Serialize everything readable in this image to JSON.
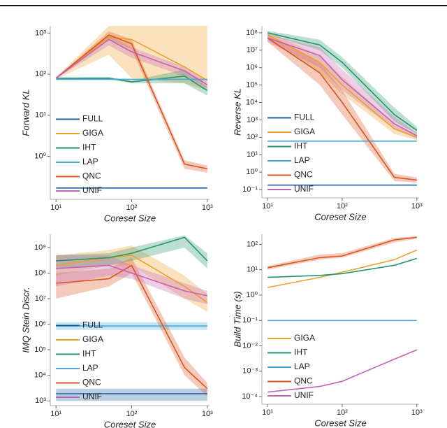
{
  "chart_data": [
    {
      "type": "line",
      "x_scale": "log",
      "y_scale": "log",
      "legend": "lower left",
      "x_label": "Coreset Size",
      "y_label": "Forward KL",
      "x": [
        10,
        50,
        100,
        500,
        1000
      ],
      "xlim": [
        8.4,
        1070
      ],
      "xticks": [
        {
          "value": 10,
          "label": "10¹"
        },
        {
          "value": 100,
          "label": "10²"
        },
        {
          "value": 1000,
          "label": "10³"
        }
      ],
      "ylim": [
        0.09,
        1500
      ],
      "yticks": [
        {
          "value": 1,
          "label": "10⁰"
        },
        {
          "value": 10,
          "label": "10¹"
        },
        {
          "value": 100,
          "label": "10²"
        },
        {
          "value": 1000,
          "label": "10³"
        }
      ],
      "series": [
        {
          "name": "FULL",
          "color": "#1f5f9f",
          "values": [
            0.17,
            0.17,
            0.17,
            0.17,
            0.17
          ]
        },
        {
          "name": "GIGA",
          "color": "#eea02c",
          "values": [
            80,
            800,
            700,
            150,
            70
          ],
          "lower": [
            75,
            300,
            80,
            60,
            40
          ],
          "upper": [
            85,
            1500,
            1500,
            1500,
            1500
          ]
        },
        {
          "name": "IHT",
          "color": "#23956a",
          "values": [
            80,
            80,
            65,
            90,
            40
          ],
          "lower": [
            78,
            75,
            60,
            60,
            30
          ],
          "upper": [
            82,
            85,
            70,
            130,
            50
          ]
        },
        {
          "name": "LAP",
          "color": "#4aa8d8",
          "values": [
            75,
            75,
            75,
            75,
            75
          ]
        },
        {
          "name": "QNC",
          "color": "#d9541e",
          "values": [
            80,
            900,
            550,
            0.65,
            0.5
          ],
          "lower": [
            78,
            700,
            400,
            0.5,
            0.4
          ],
          "upper": [
            82,
            1100,
            700,
            0.8,
            0.6
          ]
        },
        {
          "name": "UNIF",
          "color": "#c262b4",
          "values": [
            80,
            700,
            350,
            120,
            55
          ],
          "lower": [
            78,
            500,
            250,
            90,
            45
          ],
          "upper": [
            82,
            900,
            450,
            150,
            65
          ]
        }
      ]
    },
    {
      "type": "line",
      "x_scale": "log",
      "y_scale": "log",
      "legend": "lower left",
      "x_label": "Coreset Size",
      "y_label": "Reverse KL",
      "x": [
        10,
        50,
        100,
        500,
        1000
      ],
      "xlim": [
        8.4,
        1070
      ],
      "xticks": [
        {
          "value": 10,
          "label": "10¹"
        },
        {
          "value": 100,
          "label": "10²"
        },
        {
          "value": 1000,
          "label": "10³"
        }
      ],
      "ylim": [
        0.033,
        250000000
      ],
      "yticks": [
        {
          "value": 0.1,
          "label": "10⁻¹"
        },
        {
          "value": 1,
          "label": "10⁰"
        },
        {
          "value": 10,
          "label": "10¹"
        },
        {
          "value": 100,
          "label": "10²"
        },
        {
          "value": 1000,
          "label": "10³"
        },
        {
          "value": 10000,
          "label": "10⁴"
        },
        {
          "value": 100000,
          "label": "10⁵"
        },
        {
          "value": 1000000,
          "label": "10⁶"
        },
        {
          "value": 10000000,
          "label": "10⁷"
        },
        {
          "value": 100000000,
          "label": "10⁸"
        }
      ],
      "series": [
        {
          "name": "FULL",
          "color": "#1f5f9f",
          "values": [
            0.18,
            0.18,
            0.18,
            0.18,
            0.18
          ]
        },
        {
          "name": "GIGA",
          "color": "#eea02c",
          "values": [
            80000000,
            2000000,
            100000,
            300,
            100
          ],
          "lower": [
            50000000,
            500000,
            30000,
            150,
            70
          ],
          "upper": [
            120000000,
            5000000,
            300000,
            600,
            150
          ]
        },
        {
          "name": "IHT",
          "color": "#23956a",
          "values": [
            100000000,
            20000000,
            2000000,
            2000,
            250
          ],
          "lower": [
            80000000,
            10000000,
            1000000,
            800,
            150
          ],
          "upper": [
            130000000,
            40000000,
            4000000,
            5000,
            400
          ]
        },
        {
          "name": "LAP",
          "color": "#4aa8d8",
          "values": [
            60,
            60,
            60,
            60,
            60
          ]
        },
        {
          "name": "QNC",
          "color": "#d9541e",
          "values": [
            50000000,
            500000,
            10000,
            0.5,
            0.35
          ],
          "lower": [
            30000000,
            100000,
            2000,
            0.3,
            0.25
          ],
          "upper": [
            80000000,
            2000000,
            50000,
            0.8,
            0.5
          ]
        },
        {
          "name": "UNIF",
          "color": "#c262b4",
          "values": [
            50000000,
            5000000,
            200000,
            600,
            120
          ],
          "lower": [
            30000000,
            1000000,
            50000,
            300,
            80
          ],
          "upper": [
            80000000,
            15000000,
            800000,
            1500,
            180
          ]
        }
      ]
    },
    {
      "type": "line",
      "x_scale": "log",
      "y_scale": "log",
      "legend": "lower left",
      "x_label": "Coreset Size",
      "y_label": "IMQ Stein Discr.",
      "x": [
        10,
        50,
        100,
        500,
        1000
      ],
      "xlim": [
        8.4,
        1070
      ],
      "xticks": [
        {
          "value": 10,
          "label": "10¹"
        },
        {
          "value": 100,
          "label": "10²"
        },
        {
          "value": 1000,
          "label": "10³"
        }
      ],
      "ylim": [
        650,
        3300000000
      ],
      "yticks": [
        {
          "value": 1000,
          "label": "10³"
        },
        {
          "value": 10000,
          "label": "10⁴"
        },
        {
          "value": 100000,
          "label": "10⁵"
        },
        {
          "value": 1000000,
          "label": "10⁶"
        },
        {
          "value": 10000000,
          "label": "10⁷"
        },
        {
          "value": 100000000,
          "label": "10⁸"
        },
        {
          "value": 1000000000,
          "label": "10⁹"
        }
      ],
      "series": [
        {
          "name": "FULL",
          "color": "#1f5f9f",
          "values": [
            1900,
            1900,
            1900,
            1900,
            1900
          ],
          "lower": [
            1000,
            1000,
            1000,
            1000,
            1000
          ],
          "upper": [
            3000,
            3000,
            3000,
            3000,
            3000
          ]
        },
        {
          "name": "GIGA",
          "color": "#eea02c",
          "values": [
            200000000,
            400000000,
            500000000,
            30000000,
            7000000
          ],
          "lower": [
            80000000,
            200000000,
            200000000,
            10000000,
            3000000
          ],
          "upper": [
            500000000,
            800000000,
            1200000000,
            80000000,
            15000000
          ]
        },
        {
          "name": "IHT",
          "color": "#23956a",
          "values": [
            300000000,
            400000000,
            600000000,
            2500000000,
            300000000
          ],
          "lower": [
            150000000,
            200000000,
            300000000,
            1000000000,
            150000000
          ],
          "upper": [
            500000000,
            600000000,
            1000000000,
            3000000000,
            600000000
          ]
        },
        {
          "name": "LAP",
          "color": "#4aa8d8",
          "values": [
            850000,
            850000,
            850000,
            850000,
            850000
          ],
          "lower": [
            600000,
            600000,
            600000,
            600000,
            600000
          ],
          "upper": [
            1200000,
            1200000,
            1200000,
            1200000,
            1200000
          ]
        },
        {
          "name": "QNC",
          "color": "#d9541e",
          "values": [
            40000000,
            60000000,
            200000000,
            20000,
            3000
          ],
          "lower": [
            10000000,
            30000000,
            100000000,
            10000,
            1500
          ],
          "upper": [
            100000000,
            150000000,
            400000000,
            50000,
            5000
          ]
        },
        {
          "name": "UNIF",
          "color": "#c262b4",
          "values": [
            150000000,
            200000000,
            100000000,
            20000000,
            13000000
          ],
          "lower": [
            30000000,
            80000000,
            60000000,
            10000000,
            6000000
          ],
          "upper": [
            500000000,
            500000000,
            200000000,
            40000000,
            20000000
          ]
        }
      ]
    },
    {
      "type": "line",
      "x_scale": "log",
      "y_scale": "log",
      "legend": "lower left",
      "x_label": "Coreset Size",
      "y_label": "Build Time (s)",
      "x": [
        10,
        50,
        100,
        500,
        1000
      ],
      "xlim": [
        8.4,
        1070
      ],
      "xticks": [
        {
          "value": 10,
          "label": "10¹"
        },
        {
          "value": 100,
          "label": "10²"
        },
        {
          "value": 1000,
          "label": "10³"
        }
      ],
      "ylim": [
        5e-05,
        250
      ],
      "yticks": [
        {
          "value": 0.0001,
          "label": "10⁻⁴"
        },
        {
          "value": 0.001,
          "label": "10⁻³"
        },
        {
          "value": 0.01,
          "label": "10⁻²"
        },
        {
          "value": 0.1,
          "label": "10⁻¹"
        },
        {
          "value": 1,
          "label": "10⁰"
        },
        {
          "value": 10,
          "label": "10¹"
        },
        {
          "value": 100,
          "label": "10²"
        }
      ],
      "series": [
        {
          "name": "GIGA",
          "color": "#eea02c",
          "values": [
            2,
            5,
            8,
            25,
            60
          ]
        },
        {
          "name": "IHT",
          "color": "#23956a",
          "values": [
            5,
            6,
            7,
            15,
            28
          ]
        },
        {
          "name": "LAP",
          "color": "#4aa8d8",
          "values": [
            0.1,
            0.1,
            0.1,
            0.1,
            0.1
          ]
        },
        {
          "name": "QNC",
          "color": "#d9541e",
          "values": [
            12,
            30,
            35,
            150,
            190
          ],
          "lower": [
            10,
            25,
            30,
            120,
            170
          ],
          "upper": [
            14,
            40,
            45,
            180,
            210
          ]
        },
        {
          "name": "UNIF",
          "color": "#c262b4",
          "values": [
            0.00015,
            0.00025,
            0.0004,
            0.003,
            0.007
          ]
        }
      ]
    }
  ]
}
